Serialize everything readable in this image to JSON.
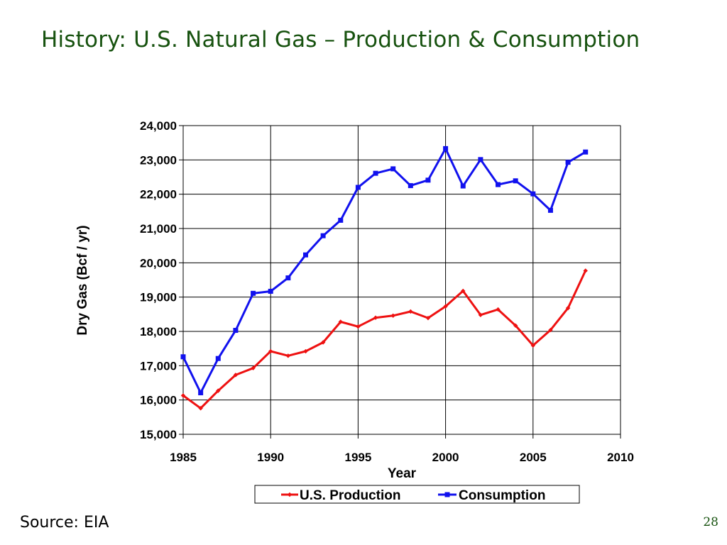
{
  "slide": {
    "title": "History:  U.S. Natural Gas – Production & Consumption",
    "source": "Source: EIA",
    "page_number": "28"
  },
  "colors": {
    "title": "#17520f",
    "production": "#ee1111",
    "consumption": "#1111ee",
    "grid": "#000000"
  },
  "chart_data": {
    "type": "line",
    "xlabel": "Year",
    "ylabel": "Dry Gas  (Bcf / yr)",
    "xlim": [
      1985,
      2010
    ],
    "ylim": [
      15000,
      24000
    ],
    "xticks": [
      1985,
      1990,
      1995,
      2000,
      2005,
      2010
    ],
    "xtick_labels": [
      "1985",
      "1990",
      "1995",
      "2000",
      "2005",
      "2010"
    ],
    "yticks": [
      15000,
      16000,
      17000,
      18000,
      19000,
      20000,
      21000,
      22000,
      23000,
      24000
    ],
    "ytick_labels": [
      "15,000",
      "16,000",
      "17,000",
      "18,000",
      "19,000",
      "20,000",
      "21,000",
      "22,000",
      "23,000",
      "24,000"
    ],
    "grid": true,
    "legend_position": "bottom",
    "x": [
      1985,
      1986,
      1987,
      1988,
      1989,
      1990,
      1991,
      1992,
      1993,
      1994,
      1995,
      1996,
      1997,
      1998,
      1999,
      2000,
      2001,
      2002,
      2003,
      2004,
      2005,
      2006,
      2007,
      2008
    ],
    "series": [
      {
        "name": "U.S. Production",
        "color": "#ee1111",
        "marker": "diamond",
        "values": [
          16130,
          15760,
          16270,
          16730,
          16930,
          17420,
          17290,
          17420,
          17680,
          18280,
          18140,
          18400,
          18460,
          18580,
          18390,
          18730,
          19180,
          18480,
          18640,
          18170,
          17590,
          18040,
          18680,
          19770
        ]
      },
      {
        "name": "Consumption",
        "color": "#1111ee",
        "marker": "square",
        "values": [
          17260,
          16210,
          17210,
          18030,
          19110,
          19170,
          19560,
          20230,
          20790,
          21240,
          22200,
          22610,
          22740,
          22250,
          22410,
          23330,
          22240,
          23010,
          22280,
          22390,
          22010,
          21530,
          22930,
          23230
        ]
      }
    ]
  }
}
